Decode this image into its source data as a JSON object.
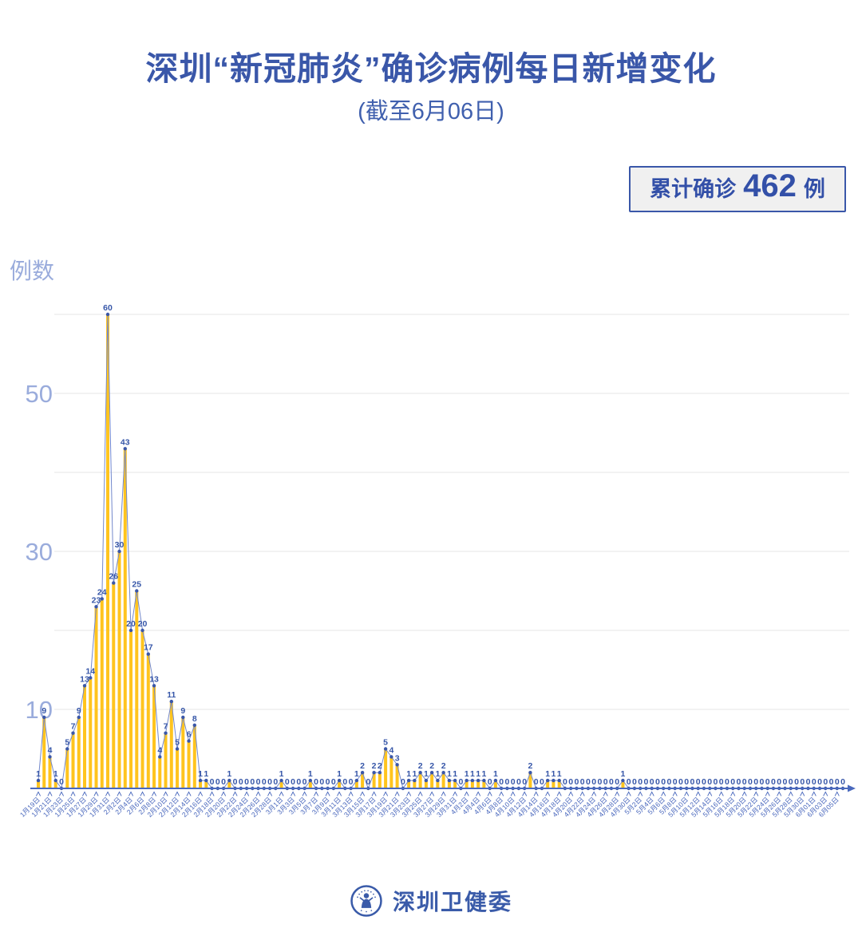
{
  "header": {
    "title": "深圳“新冠肺炎”确诊病例每日新增变化",
    "subtitle": "(截至6月06日)"
  },
  "summary_badge": {
    "label": "累计确诊",
    "value": "462",
    "unit": "例"
  },
  "chart_data": {
    "type": "bar",
    "title": "深圳“新冠肺炎”确诊病例每日新增变化 (截至6月06日)",
    "ylabel": "例数",
    "xlabel": "",
    "ylim": [
      0,
      62
    ],
    "grid": true,
    "gridline_values": [
      10,
      20,
      30,
      40,
      50,
      60
    ],
    "y_ticks_labeled": [
      "10",
      "30",
      "50"
    ],
    "legend_position": "none",
    "x_label_every": 2,
    "x_labels": [
      "1月19日",
      "1月21日",
      "1月23日",
      "1月25日",
      "1月27日",
      "1月29日",
      "1月31日",
      "2月2日",
      "2月4日",
      "2月6日",
      "2月8日",
      "2月10日",
      "2月12日",
      "2月14日",
      "2月16日",
      "2月18日",
      "2月20日",
      "2月22日",
      "2月24日",
      "2月26日",
      "2月28日",
      "3月1日",
      "3月3日",
      "3月5日",
      "3月7日",
      "3月9日",
      "3月11日",
      "3月13日",
      "3月15日",
      "3月17日",
      "3月19日",
      "3月21日",
      "3月23日",
      "3月25日",
      "3月27日",
      "3月29日",
      "3月31日",
      "4月2日",
      "4月4日",
      "4月6日",
      "4月8日",
      "4月10日",
      "4月12日",
      "4月14日",
      "4月16日",
      "4月18日",
      "4月20日",
      "4月22日",
      "4月24日",
      "4月26日",
      "4月28日",
      "4月30日",
      "5月2日",
      "5月4日",
      "5月6日",
      "5月8日",
      "5月10日",
      "5月12日",
      "5月14日",
      "5月16日",
      "5月18日",
      "5月20日",
      "5月22日",
      "5月24日",
      "5月26日",
      "5月28日",
      "5月30日",
      "6月01日",
      "6月03日",
      "6月05日"
    ],
    "values": [
      1,
      9,
      4,
      1,
      0,
      5,
      7,
      9,
      13,
      14,
      23,
      24,
      60,
      26,
      30,
      43,
      20,
      25,
      20,
      17,
      13,
      4,
      7,
      11,
      5,
      9,
      6,
      8,
      1,
      1,
      0,
      0,
      0,
      1,
      0,
      0,
      0,
      0,
      0,
      0,
      0,
      0,
      1,
      0,
      0,
      0,
      0,
      1,
      0,
      0,
      0,
      0,
      1,
      0,
      0,
      1,
      2,
      0,
      2,
      2,
      5,
      4,
      3,
      0,
      1,
      1,
      2,
      1,
      2,
      1,
      2,
      1,
      1,
      0,
      1,
      1,
      1,
      1,
      0,
      1,
      0,
      0,
      0,
      0,
      0,
      2,
      0,
      0,
      1,
      1,
      1,
      0,
      0,
      0,
      0,
      0,
      0,
      0,
      0,
      0,
      0,
      1,
      0,
      0,
      0,
      0,
      0,
      0,
      0,
      0,
      0,
      0,
      0,
      0,
      0,
      0,
      0,
      0,
      0,
      0,
      0,
      0,
      0,
      0,
      0,
      0,
      0,
      0,
      0,
      0,
      0,
      0,
      0,
      0,
      0,
      0,
      0,
      0,
      0,
      0
    ]
  },
  "colors": {
    "title_blue": "#3a57a9",
    "bar_yellow": "#ffc41e",
    "line_blue": "#7388cb",
    "dot_blue": "#3a57a9",
    "value_label_blue": "#3656a8",
    "axis_blue": "#4a69bd",
    "date_label_blue": "#4a68bd",
    "grid_gray": "#e6e6e6",
    "y_label_periwinkle": "#9aacdc",
    "badge_bg": "#f0f0f0"
  },
  "footer": {
    "brand": "深圳卫健委",
    "logo": "shenzhen-health-commission-emblem"
  }
}
